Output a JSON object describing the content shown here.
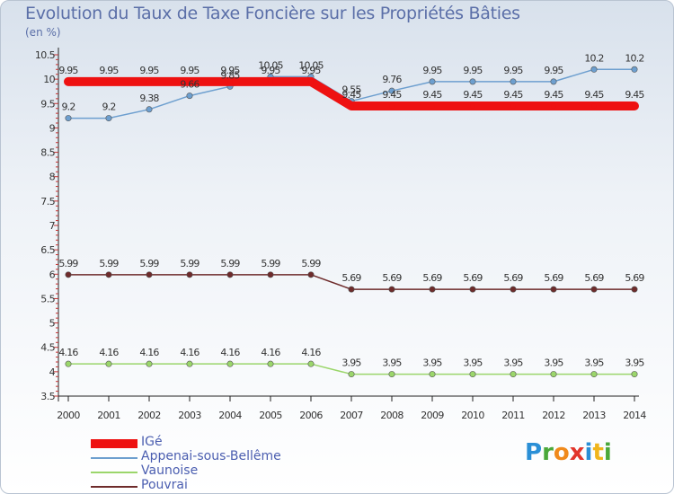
{
  "title": "Evolution du Taux de Taxe Foncière sur les Propriétés Bâties",
  "unit": "(en %)",
  "logo": {
    "text": "Proxiti",
    "letters": [
      "P",
      "r",
      "o",
      "x",
      "i",
      "t",
      "i"
    ],
    "colors": [
      "#2a8fd6",
      "#4aa83a",
      "#f08a1c",
      "#e2352b",
      "#2a8fd6",
      "#f0b51c",
      "#4aa83a"
    ]
  },
  "chart_data": {
    "type": "line",
    "x": [
      "2000",
      "2001",
      "2002",
      "2003",
      "2004",
      "2005",
      "2006",
      "2007",
      "2008",
      "2009",
      "2010",
      "2011",
      "2012",
      "2013",
      "2014"
    ],
    "ylim": [
      3.5,
      10.5
    ],
    "yticks": [
      "3.5",
      "4",
      "4.5",
      "5",
      "5.5",
      "6",
      "6.5",
      "7",
      "7.5",
      "8",
      "8.5",
      "9",
      "9.5",
      "10",
      "10.5"
    ],
    "grid": false,
    "legend_position": "bottom-left",
    "series": [
      {
        "name": "IGé",
        "color": "#ee1111",
        "values": [
          9.95,
          9.95,
          9.95,
          9.95,
          9.95,
          9.95,
          9.95,
          9.45,
          9.45,
          9.45,
          9.45,
          9.45,
          9.45,
          9.45,
          9.45
        ],
        "labels": [
          "9.95",
          "9.95",
          "9.95",
          "9.95",
          "9.95",
          "9.95",
          "9.95",
          "9.45",
          "9.45",
          "9.45",
          "9.45",
          "9.45",
          "9.45",
          "9.45",
          "9.45"
        ]
      },
      {
        "name": "Appenai-sous-Bellême",
        "color": "#6d9fcf",
        "values": [
          9.2,
          9.2,
          9.38,
          9.66,
          9.85,
          10.05,
          10.05,
          9.55,
          9.76,
          9.95,
          9.95,
          9.95,
          9.95,
          10.2,
          10.2
        ],
        "labels": [
          "9.2",
          "9.2",
          "9.38",
          "9.66",
          "9.85",
          "10.05",
          "10.05",
          "9.55",
          "9.76",
          "9.95",
          "9.95",
          "9.95",
          "9.95",
          "10.2",
          "10.2"
        ]
      },
      {
        "name": "Vaunoise",
        "color": "#9bd66b",
        "values": [
          4.16,
          4.16,
          4.16,
          4.16,
          4.16,
          4.16,
          4.16,
          3.95,
          3.95,
          3.95,
          3.95,
          3.95,
          3.95,
          3.95,
          3.95
        ],
        "labels": [
          "4.16",
          "4.16",
          "4.16",
          "4.16",
          "4.16",
          "4.16",
          "4.16",
          "3.95",
          "3.95",
          "3.95",
          "3.95",
          "3.95",
          "3.95",
          "3.95",
          "3.95"
        ]
      },
      {
        "name": "Pouvrai",
        "color": "#6e2b2b",
        "values": [
          5.99,
          5.99,
          5.99,
          5.99,
          5.99,
          5.99,
          5.99,
          5.69,
          5.69,
          5.69,
          5.69,
          5.69,
          5.69,
          5.69,
          5.69
        ],
        "labels": [
          "5.99",
          "5.99",
          "5.99",
          "5.99",
          "5.99",
          "5.99",
          "5.99",
          "5.69",
          "5.69",
          "5.69",
          "5.69",
          "5.69",
          "5.69",
          "5.69",
          "5.69"
        ]
      }
    ]
  }
}
